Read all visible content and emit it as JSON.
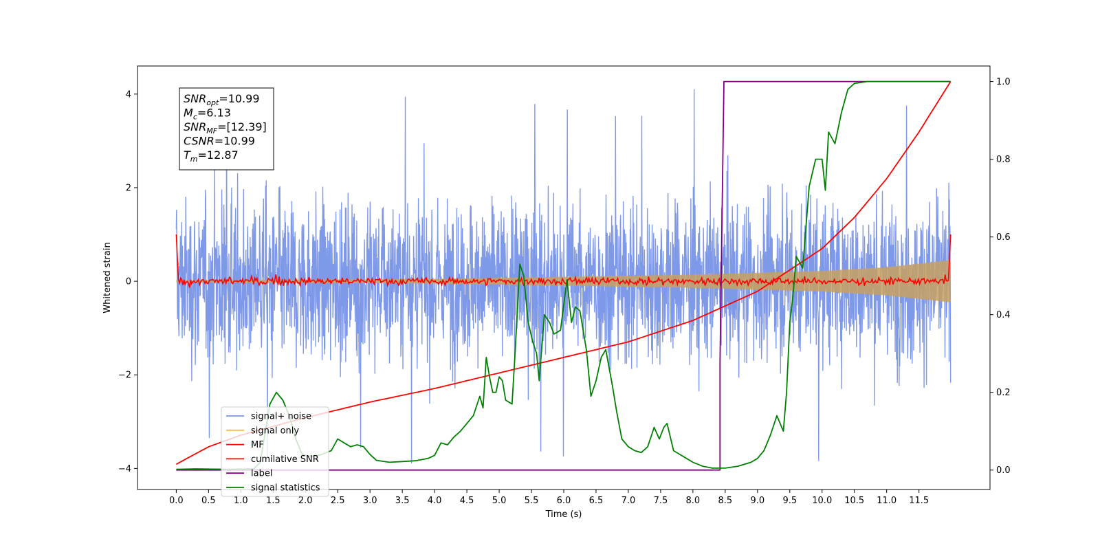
{
  "chart_data": {
    "type": "line",
    "xlabel": "Time (s)",
    "ylabel": "Whitened strain",
    "xlim": [
      -0.6,
      12.6
    ],
    "ylim": [
      -4.45,
      4.6
    ],
    "y2lim": [
      -0.05,
      1.04
    ],
    "x_ticks": [
      0.0,
      0.5,
      1.0,
      1.5,
      2.0,
      2.5,
      3.0,
      3.5,
      4.0,
      4.5,
      5.0,
      5.5,
      6.0,
      6.5,
      7.0,
      7.5,
      8.0,
      8.5,
      9.0,
      9.5,
      10.0,
      10.5,
      11.0,
      11.5
    ],
    "x_tick_labels": [
      "0.0",
      "0.5",
      "1.0",
      "1.5",
      "2.0",
      "2.5",
      "3.0",
      "3.5",
      "4.0",
      "4.5",
      "5.0",
      "5.5",
      "6.0",
      "6.5",
      "7.0",
      "7.5",
      "8.0",
      "8.5",
      "9.0",
      "9.5",
      "10.0",
      "10.5",
      "11.0",
      "11.5"
    ],
    "y_ticks": [
      -4,
      -2,
      0,
      2,
      4
    ],
    "y_tick_labels": [
      "−4",
      "−2",
      "0",
      "2",
      "4"
    ],
    "y2_ticks": [
      0.0,
      0.2,
      0.4,
      0.6,
      0.8,
      1.0
    ],
    "y2_tick_labels": [
      "0.0",
      "0.2",
      "0.4",
      "0.6",
      "0.8",
      "1.0"
    ],
    "grid": false,
    "legend_position": "lower-left",
    "annotation": {
      "lines": [
        {
          "sym": "SNR",
          "sub": "opt",
          "val": "=10.99"
        },
        {
          "sym": "M",
          "sub": "c",
          "val": "=6.13"
        },
        {
          "sym": "SNR",
          "sub": "MF",
          "val": "=[12.39]"
        },
        {
          "sym": "CSNR",
          "sub": "",
          "val": "=10.99"
        },
        {
          "sym": "T",
          "sub": "m",
          "val": "=12.87"
        }
      ]
    },
    "series": [
      {
        "name": "signal+ noise",
        "axis": "left",
        "color": "#7893e8",
        "style": "dense noise",
        "x_range": [
          0.0,
          11.99
        ],
        "band_typical": [
          -1.6,
          1.6
        ],
        "band_extreme": [
          -3.9,
          4.15
        ]
      },
      {
        "name": "signal only",
        "axis": "left",
        "color": "#f5b94f",
        "style": "chirp",
        "x_range": [
          0.0,
          11.99
        ],
        "envelope": [
          [
            0.0,
            0.02
          ],
          [
            4.0,
            0.05
          ],
          [
            8.0,
            0.14
          ],
          [
            10.0,
            0.22
          ],
          [
            11.0,
            0.3
          ],
          [
            11.99,
            0.45
          ]
        ]
      },
      {
        "name": "MF",
        "axis": "left",
        "color": "#ff0000",
        "style": "noisy line",
        "x_range": [
          0.0,
          11.99
        ],
        "start_value": 1.0,
        "end_value": 1.0,
        "band": [
          -0.15,
          0.15
        ]
      },
      {
        "name": "cumilative SNR",
        "axis": "right",
        "points": [
          [
            0.0,
            0.015
          ],
          [
            0.5,
            0.06
          ],
          [
            1.0,
            0.09
          ],
          [
            2.0,
            0.135
          ],
          [
            3.0,
            0.175
          ],
          [
            4.0,
            0.21
          ],
          [
            5.0,
            0.25
          ],
          [
            6.0,
            0.29
          ],
          [
            7.0,
            0.33
          ],
          [
            8.0,
            0.385
          ],
          [
            9.0,
            0.46
          ],
          [
            10.0,
            0.57
          ],
          [
            10.5,
            0.65
          ],
          [
            11.0,
            0.75
          ],
          [
            11.5,
            0.87
          ],
          [
            11.99,
            1.0
          ]
        ],
        "color": "#ff0000"
      },
      {
        "name": "label",
        "axis": "right",
        "color": "#800080",
        "points": [
          [
            0.0,
            0.0
          ],
          [
            8.42,
            0.0
          ],
          [
            8.42,
            0.28
          ],
          [
            8.48,
            1.0
          ],
          [
            11.99,
            1.0
          ]
        ]
      },
      {
        "name": "signal statistics",
        "axis": "right",
        "color": "#008000",
        "points": [
          [
            0.0,
            0.002
          ],
          [
            0.3,
            0.003
          ],
          [
            0.8,
            0.002
          ],
          [
            1.2,
            0.003
          ],
          [
            1.3,
            0.02
          ],
          [
            1.45,
            0.17
          ],
          [
            1.55,
            0.2
          ],
          [
            1.65,
            0.18
          ],
          [
            1.75,
            0.14
          ],
          [
            1.85,
            0.08
          ],
          [
            1.95,
            0.04
          ],
          [
            2.1,
            0.035
          ],
          [
            2.25,
            0.04
          ],
          [
            2.4,
            0.05
          ],
          [
            2.5,
            0.08
          ],
          [
            2.6,
            0.07
          ],
          [
            2.7,
            0.06
          ],
          [
            2.8,
            0.065
          ],
          [
            2.9,
            0.06
          ],
          [
            3.0,
            0.04
          ],
          [
            3.1,
            0.025
          ],
          [
            3.3,
            0.02
          ],
          [
            3.5,
            0.022
          ],
          [
            3.7,
            0.024
          ],
          [
            3.9,
            0.03
          ],
          [
            4.0,
            0.038
          ],
          [
            4.1,
            0.07
          ],
          [
            4.2,
            0.065
          ],
          [
            4.3,
            0.085
          ],
          [
            4.4,
            0.1
          ],
          [
            4.5,
            0.12
          ],
          [
            4.6,
            0.14
          ],
          [
            4.7,
            0.19
          ],
          [
            4.75,
            0.16
          ],
          [
            4.8,
            0.29
          ],
          [
            4.85,
            0.24
          ],
          [
            4.9,
            0.2
          ],
          [
            4.95,
            0.2
          ],
          [
            5.0,
            0.24
          ],
          [
            5.05,
            0.23
          ],
          [
            5.1,
            0.18
          ],
          [
            5.2,
            0.17
          ],
          [
            5.25,
            0.31
          ],
          [
            5.32,
            0.53
          ],
          [
            5.38,
            0.5
          ],
          [
            5.45,
            0.38
          ],
          [
            5.52,
            0.33
          ],
          [
            5.58,
            0.3
          ],
          [
            5.62,
            0.23
          ],
          [
            5.7,
            0.4
          ],
          [
            5.78,
            0.38
          ],
          [
            5.85,
            0.35
          ],
          [
            5.95,
            0.36
          ],
          [
            6.05,
            0.49
          ],
          [
            6.12,
            0.38
          ],
          [
            6.18,
            0.42
          ],
          [
            6.25,
            0.41
          ],
          [
            6.35,
            0.31
          ],
          [
            6.42,
            0.19
          ],
          [
            6.5,
            0.23
          ],
          [
            6.58,
            0.29
          ],
          [
            6.65,
            0.31
          ],
          [
            6.75,
            0.22
          ],
          [
            6.82,
            0.15
          ],
          [
            6.9,
            0.08
          ],
          [
            7.0,
            0.06
          ],
          [
            7.1,
            0.05
          ],
          [
            7.2,
            0.045
          ],
          [
            7.3,
            0.06
          ],
          [
            7.4,
            0.11
          ],
          [
            7.48,
            0.08
          ],
          [
            7.55,
            0.11
          ],
          [
            7.6,
            0.12
          ],
          [
            7.7,
            0.05
          ],
          [
            7.8,
            0.04
          ],
          [
            7.9,
            0.03
          ],
          [
            8.0,
            0.02
          ],
          [
            8.15,
            0.01
          ],
          [
            8.3,
            0.005
          ],
          [
            8.5,
            0.005
          ],
          [
            8.7,
            0.01
          ],
          [
            8.9,
            0.02
          ],
          [
            9.0,
            0.03
          ],
          [
            9.1,
            0.05
          ],
          [
            9.2,
            0.09
          ],
          [
            9.3,
            0.14
          ],
          [
            9.4,
            0.1
          ],
          [
            9.45,
            0.2
          ],
          [
            9.5,
            0.38
          ],
          [
            9.55,
            0.45
          ],
          [
            9.6,
            0.55
          ],
          [
            9.7,
            0.52
          ],
          [
            9.8,
            0.73
          ],
          [
            9.9,
            0.8
          ],
          [
            10.0,
            0.8
          ],
          [
            10.05,
            0.72
          ],
          [
            10.1,
            0.87
          ],
          [
            10.2,
            0.84
          ],
          [
            10.3,
            0.92
          ],
          [
            10.4,
            0.98
          ],
          [
            10.5,
            0.995
          ],
          [
            10.7,
            1.0
          ],
          [
            11.99,
            1.0
          ]
        ]
      }
    ]
  }
}
